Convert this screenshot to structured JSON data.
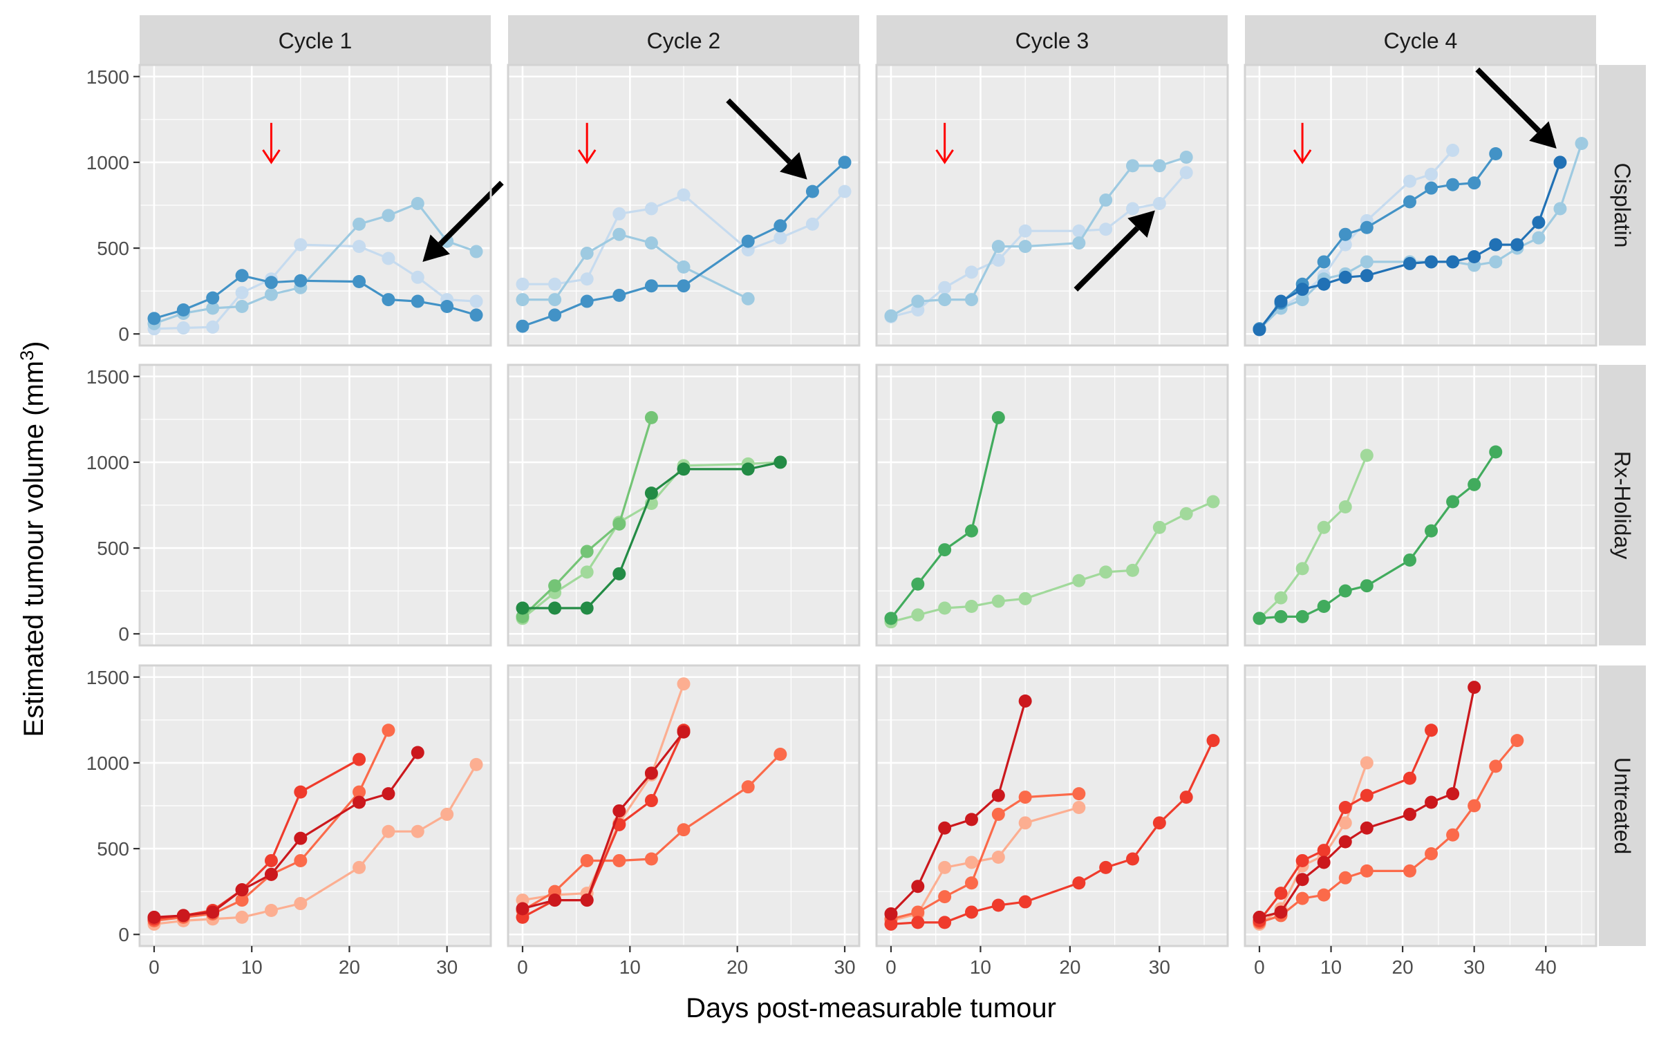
{
  "chart_data": {
    "type": "line",
    "xlabel": "Days post-measurable tumour",
    "ylabel": "Estimated tumour volume (mm",
    "ylabel_sup": "3",
    "ylabel_close": ")",
    "ylim": [
      0,
      1500
    ],
    "yticks": [
      0,
      500,
      1000,
      1500
    ],
    "columns": [
      {
        "label": "Cycle 1",
        "xlim": [
          0,
          33
        ],
        "xticks": [
          0,
          10,
          20,
          30
        ]
      },
      {
        "label": "Cycle 2",
        "xlim": [
          0,
          30
        ],
        "xticks": [
          0,
          10,
          20,
          30
        ]
      },
      {
        "label": "Cycle 3",
        "xlim": [
          0,
          36
        ],
        "xticks": [
          0,
          10,
          20,
          30
        ]
      },
      {
        "label": "Cycle 4",
        "xlim": [
          0,
          45
        ],
        "xticks": [
          0,
          10,
          20,
          30,
          40
        ]
      }
    ],
    "rows": [
      {
        "label": "Cisplatin",
        "palette": [
          "#c6dbef",
          "#9ecae1",
          "#6baed6",
          "#4292c6",
          "#2171b5"
        ]
      },
      {
        "label": "Rx-Holiday",
        "palette": [
          "#a1d99b",
          "#74c476",
          "#41ab5d",
          "#238b45"
        ]
      },
      {
        "label": "Untreated",
        "palette": [
          "#fcae91",
          "#fb6a4a",
          "#ef3b2c",
          "#de2d26",
          "#cb181d"
        ]
      }
    ],
    "panels": [
      {
        "row": 0,
        "col": 0,
        "series": [
          {
            "shade": 0,
            "x": [
              0,
              3,
              6,
              9,
              12,
              15,
              21,
              24,
              27,
              30,
              33
            ],
            "y": [
              30,
              35,
              40,
              240,
              320,
              520,
              510,
              440,
              330,
              200,
              190
            ]
          },
          {
            "shade": 1,
            "x": [
              0,
              3,
              6,
              9,
              12,
              15,
              21,
              24,
              27,
              30,
              33
            ],
            "y": [
              60,
              120,
              150,
              160,
              230,
              270,
              640,
              690,
              760,
              540,
              480
            ]
          },
          {
            "shade": 3,
            "x": [
              0,
              3,
              6,
              9,
              12,
              15,
              21,
              24,
              27,
              30,
              33
            ],
            "y": [
              90,
              140,
              210,
              340,
              300,
              310,
              305,
              200,
              190,
              160,
              110
            ]
          }
        ],
        "red_arrows": [
          {
            "x": 12
          }
        ],
        "black_arrows": [
          {
            "x": 27.5,
            "y": 420,
            "from": "upper-right"
          }
        ]
      },
      {
        "row": 0,
        "col": 1,
        "series": [
          {
            "shade": 0,
            "x": [
              0,
              3,
              6,
              9,
              12,
              15,
              21,
              24,
              27,
              30
            ],
            "y": [
              290,
              290,
              320,
              700,
              730,
              810,
              490,
              560,
              640,
              830
            ]
          },
          {
            "shade": 1,
            "x": [
              0,
              3,
              6,
              9,
              12,
              15,
              21
            ],
            "y": [
              200,
              200,
              470,
              580,
              530,
              390,
              205
            ]
          },
          {
            "shade": 3,
            "x": [
              0,
              3,
              6,
              9,
              12,
              15,
              21,
              24,
              27,
              30
            ],
            "y": [
              45,
              110,
              190,
              225,
              280,
              280,
              540,
              630,
              830,
              1000
            ]
          }
        ],
        "red_arrows": [
          {
            "x": 6
          }
        ],
        "black_arrows": [
          {
            "x": 26.5,
            "y": 900,
            "from": "upper-left"
          }
        ]
      },
      {
        "row": 0,
        "col": 2,
        "series": [
          {
            "shade": 0,
            "x": [
              0,
              3,
              6,
              9,
              12,
              15,
              21,
              24,
              27,
              30,
              33
            ],
            "y": [
              100,
              140,
              270,
              360,
              430,
              600,
              600,
              610,
              730,
              760,
              940
            ]
          },
          {
            "shade": 1,
            "x": [
              0,
              3,
              6,
              9,
              12,
              15,
              21,
              24,
              27,
              30,
              33
            ],
            "y": [
              105,
              190,
              200,
              200,
              510,
              510,
              530,
              780,
              980,
              980,
              1030
            ]
          }
        ],
        "red_arrows": [
          {
            "x": 6
          }
        ],
        "black_arrows": [
          {
            "x": 29.5,
            "y": 720,
            "from": "lower-left"
          }
        ]
      },
      {
        "row": 0,
        "col": 3,
        "series": [
          {
            "shade": 0,
            "x": [
              0,
              3,
              6,
              9,
              12,
              15,
              21,
              24,
              27
            ],
            "y": [
              30,
              150,
              230,
              340,
              520,
              660,
              890,
              930,
              1070
            ]
          },
          {
            "shade": 1,
            "x": [
              0,
              3,
              6,
              9,
              12,
              15,
              21,
              24,
              27,
              30,
              33,
              36,
              39,
              42,
              45
            ],
            "y": [
              30,
              150,
              200,
              320,
              350,
              420,
              420,
              420,
              420,
              400,
              420,
              500,
              560,
              730,
              1110
            ]
          },
          {
            "shade": 3,
            "x": [
              0,
              3,
              6,
              9,
              12,
              15,
              21,
              24,
              27,
              30,
              33
            ],
            "y": [
              30,
              180,
              290,
              420,
              580,
              620,
              770,
              850,
              870,
              880,
              1050
            ]
          },
          {
            "shade": 4,
            "x": [
              0,
              3,
              6,
              9,
              12,
              15,
              21,
              24,
              27,
              30,
              33,
              36,
              39,
              42
            ],
            "y": [
              25,
              190,
              260,
              290,
              330,
              340,
              410,
              420,
              420,
              450,
              520,
              520,
              650,
              1000
            ]
          }
        ],
        "red_arrows": [
          {
            "x": 6
          }
        ],
        "black_arrows": [
          {
            "x": 41.5,
            "y": 1080,
            "from": "upper-left"
          }
        ]
      },
      {
        "row": 1,
        "col": 0,
        "series": [],
        "red_arrows": [],
        "black_arrows": []
      },
      {
        "row": 1,
        "col": 1,
        "series": [
          {
            "shade": 0,
            "x": [
              0,
              3,
              6,
              9,
              12,
              15,
              21,
              24
            ],
            "y": [
              90,
              240,
              360,
              650,
              760,
              980,
              990,
              1000
            ]
          },
          {
            "shade": 1,
            "x": [
              0,
              3,
              6,
              9,
              12
            ],
            "y": [
              100,
              280,
              480,
              640,
              1260
            ]
          },
          {
            "shade": 3,
            "x": [
              0,
              3,
              6,
              9,
              12,
              15,
              21,
              24
            ],
            "y": [
              150,
              150,
              150,
              350,
              820,
              960,
              960,
              1000
            ]
          }
        ],
        "red_arrows": [],
        "black_arrows": []
      },
      {
        "row": 1,
        "col": 2,
        "series": [
          {
            "shade": 0,
            "x": [
              0,
              3,
              6,
              9,
              12,
              15,
              21,
              24,
              27,
              30,
              33,
              36
            ],
            "y": [
              70,
              110,
              150,
              160,
              190,
              205,
              310,
              360,
              370,
              620,
              700,
              770
            ]
          },
          {
            "shade": 2,
            "x": [
              0,
              3,
              6,
              9,
              12
            ],
            "y": [
              90,
              290,
              490,
              600,
              1260
            ]
          }
        ],
        "red_arrows": [],
        "black_arrows": []
      },
      {
        "row": 1,
        "col": 3,
        "series": [
          {
            "shade": 0,
            "x": [
              0,
              3,
              6,
              9,
              12,
              15
            ],
            "y": [
              90,
              210,
              380,
              620,
              740,
              1040
            ]
          },
          {
            "shade": 2,
            "x": [
              0,
              3,
              6,
              9,
              12,
              15,
              21,
              24,
              27,
              30,
              33
            ],
            "y": [
              90,
              100,
              100,
              160,
              250,
              280,
              430,
              600,
              770,
              870,
              1060
            ]
          }
        ],
        "red_arrows": [],
        "black_arrows": []
      },
      {
        "row": 2,
        "col": 0,
        "series": [
          {
            "shade": 0,
            "x": [
              0,
              3,
              6,
              9,
              12,
              15,
              21,
              24,
              27,
              30,
              33
            ],
            "y": [
              60,
              80,
              90,
              100,
              140,
              180,
              390,
              600,
              600,
              700,
              990
            ]
          },
          {
            "shade": 1,
            "x": [
              0,
              3,
              6,
              9,
              12,
              15,
              21,
              24
            ],
            "y": [
              80,
              100,
              120,
              200,
              350,
              430,
              830,
              1190
            ]
          },
          {
            "shade": 2,
            "x": [
              0,
              3,
              6,
              9,
              12,
              15,
              21
            ],
            "y": [
              90,
              110,
              140,
              260,
              430,
              830,
              1020
            ]
          },
          {
            "shade": 4,
            "x": [
              0,
              3,
              6,
              9,
              12,
              15,
              21,
              24,
              27
            ],
            "y": [
              100,
              110,
              130,
              260,
              350,
              560,
              770,
              820,
              1060
            ]
          }
        ],
        "red_arrows": [],
        "black_arrows": []
      },
      {
        "row": 2,
        "col": 1,
        "series": [
          {
            "shade": 0,
            "x": [
              0,
              3,
              6,
              9,
              12,
              15
            ],
            "y": [
              200,
              230,
              240,
              650,
              930,
              1460
            ]
          },
          {
            "shade": 1,
            "x": [
              0,
              3,
              6,
              9,
              12,
              15,
              21,
              24
            ],
            "y": [
              140,
              250,
              430,
              430,
              440,
              610,
              860,
              1050
            ]
          },
          {
            "shade": 2,
            "x": [
              0,
              3,
              6,
              9,
              12,
              15
            ],
            "y": [
              100,
              200,
              200,
              640,
              780,
              1190
            ]
          },
          {
            "shade": 4,
            "x": [
              0,
              3,
              6,
              9,
              12,
              15
            ],
            "y": [
              150,
              200,
              200,
              720,
              940,
              1180
            ]
          }
        ],
        "red_arrows": [],
        "black_arrows": []
      },
      {
        "row": 2,
        "col": 2,
        "series": [
          {
            "shade": 0,
            "x": [
              0,
              3,
              6,
              9,
              12,
              15,
              21
            ],
            "y": [
              80,
              120,
              390,
              420,
              450,
              650,
              740
            ]
          },
          {
            "shade": 1,
            "x": [
              0,
              3,
              6,
              9,
              12,
              15,
              21
            ],
            "y": [
              90,
              130,
              220,
              300,
              700,
              800,
              820
            ]
          },
          {
            "shade": 2,
            "x": [
              0,
              3,
              6,
              9,
              12,
              15,
              21,
              24,
              27,
              30,
              33,
              36
            ],
            "y": [
              60,
              70,
              70,
              130,
              170,
              190,
              300,
              390,
              440,
              650,
              800,
              1130
            ]
          },
          {
            "shade": 4,
            "x": [
              0,
              3,
              6,
              9,
              12,
              15
            ],
            "y": [
              120,
              280,
              620,
              670,
              810,
              1360
            ]
          }
        ],
        "red_arrows": [],
        "black_arrows": []
      },
      {
        "row": 2,
        "col": 3,
        "series": [
          {
            "shade": 0,
            "x": [
              0,
              3,
              6,
              9,
              12,
              15
            ],
            "y": [
              60,
              150,
              400,
              460,
              650,
              1000
            ]
          },
          {
            "shade": 1,
            "x": [
              0,
              3,
              6,
              9,
              12,
              15,
              21,
              24,
              27,
              30,
              33,
              36
            ],
            "y": [
              70,
              110,
              210,
              230,
              330,
              370,
              370,
              470,
              580,
              750,
              980,
              1130
            ]
          },
          {
            "shade": 2,
            "x": [
              0,
              3,
              6,
              9,
              12,
              15,
              21,
              24
            ],
            "y": [
              80,
              240,
              430,
              490,
              740,
              810,
              910,
              1190
            ]
          },
          {
            "shade": 4,
            "x": [
              0,
              3,
              6,
              9,
              12,
              15,
              21,
              24,
              27,
              30
            ],
            "y": [
              100,
              130,
              320,
              420,
              540,
              620,
              700,
              770,
              820,
              1440
            ]
          }
        ],
        "red_arrows": [],
        "black_arrows": []
      }
    ]
  }
}
